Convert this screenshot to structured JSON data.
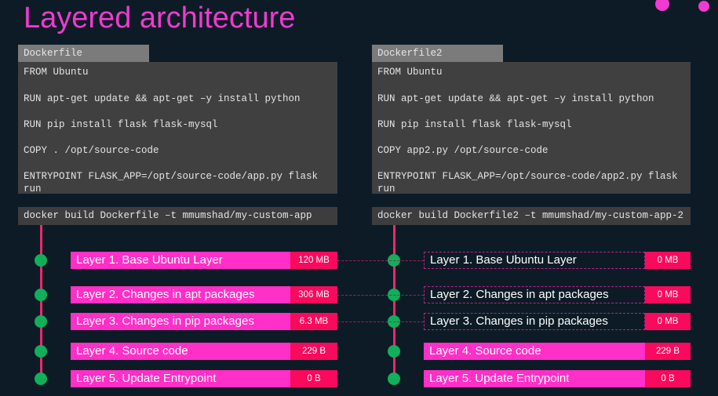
{
  "title": "Layered architecture",
  "colors": {
    "accent": "#f03ad0",
    "layer": "#ff2fc7",
    "size": "#fa0a5c",
    "node": "#10b05a",
    "line": "#f0286e"
  },
  "left": {
    "tab": "Dockerfile",
    "code": [
      "FROM Ubuntu",
      "RUN apt-get update && apt-get –y install python",
      "RUN pip install flask flask-mysql",
      "COPY . /opt/source-code",
      "ENTRYPOINT FLASK_APP=/opt/source-code/app.py flask",
      "run"
    ],
    "build": "docker build Dockerfile –t mmumshad/my-custom-app",
    "layers": [
      {
        "label": "Layer 1. Base Ubuntu Layer",
        "size": "120 MB",
        "cached": false
      },
      {
        "label": "Layer 2. Changes in apt packages",
        "size": "306 MB",
        "cached": false
      },
      {
        "label": "Layer 3. Changes in pip packages",
        "size": "6.3 MB",
        "cached": false
      },
      {
        "label": "Layer 4. Source code",
        "size": "229 B",
        "cached": false
      },
      {
        "label": "Layer 5. Update Entrypoint",
        "size": "0 B",
        "cached": false
      }
    ]
  },
  "right": {
    "tab": "Dockerfile2",
    "code": [
      "FROM Ubuntu",
      "RUN apt-get update && apt-get –y install python",
      "RUN pip install flask flask-mysql",
      "COPY app2.py /opt/source-code",
      "ENTRYPOINT FLASK_APP=/opt/source-code/app2.py flask",
      "run"
    ],
    "build": "docker build Dockerfile2 –t mmumshad/my-custom-app-2",
    "layers": [
      {
        "label": "Layer 1. Base Ubuntu Layer",
        "size": "0 MB",
        "cached": true
      },
      {
        "label": "Layer 2. Changes in apt packages",
        "size": "0 MB",
        "cached": true
      },
      {
        "label": "Layer 3. Changes in pip packages",
        "size": "0 MB",
        "cached": true
      },
      {
        "label": "Layer 4. Source code",
        "size": "229 B",
        "cached": false
      },
      {
        "label": "Layer 5. Update Entrypoint",
        "size": "0 B",
        "cached": false
      }
    ]
  }
}
